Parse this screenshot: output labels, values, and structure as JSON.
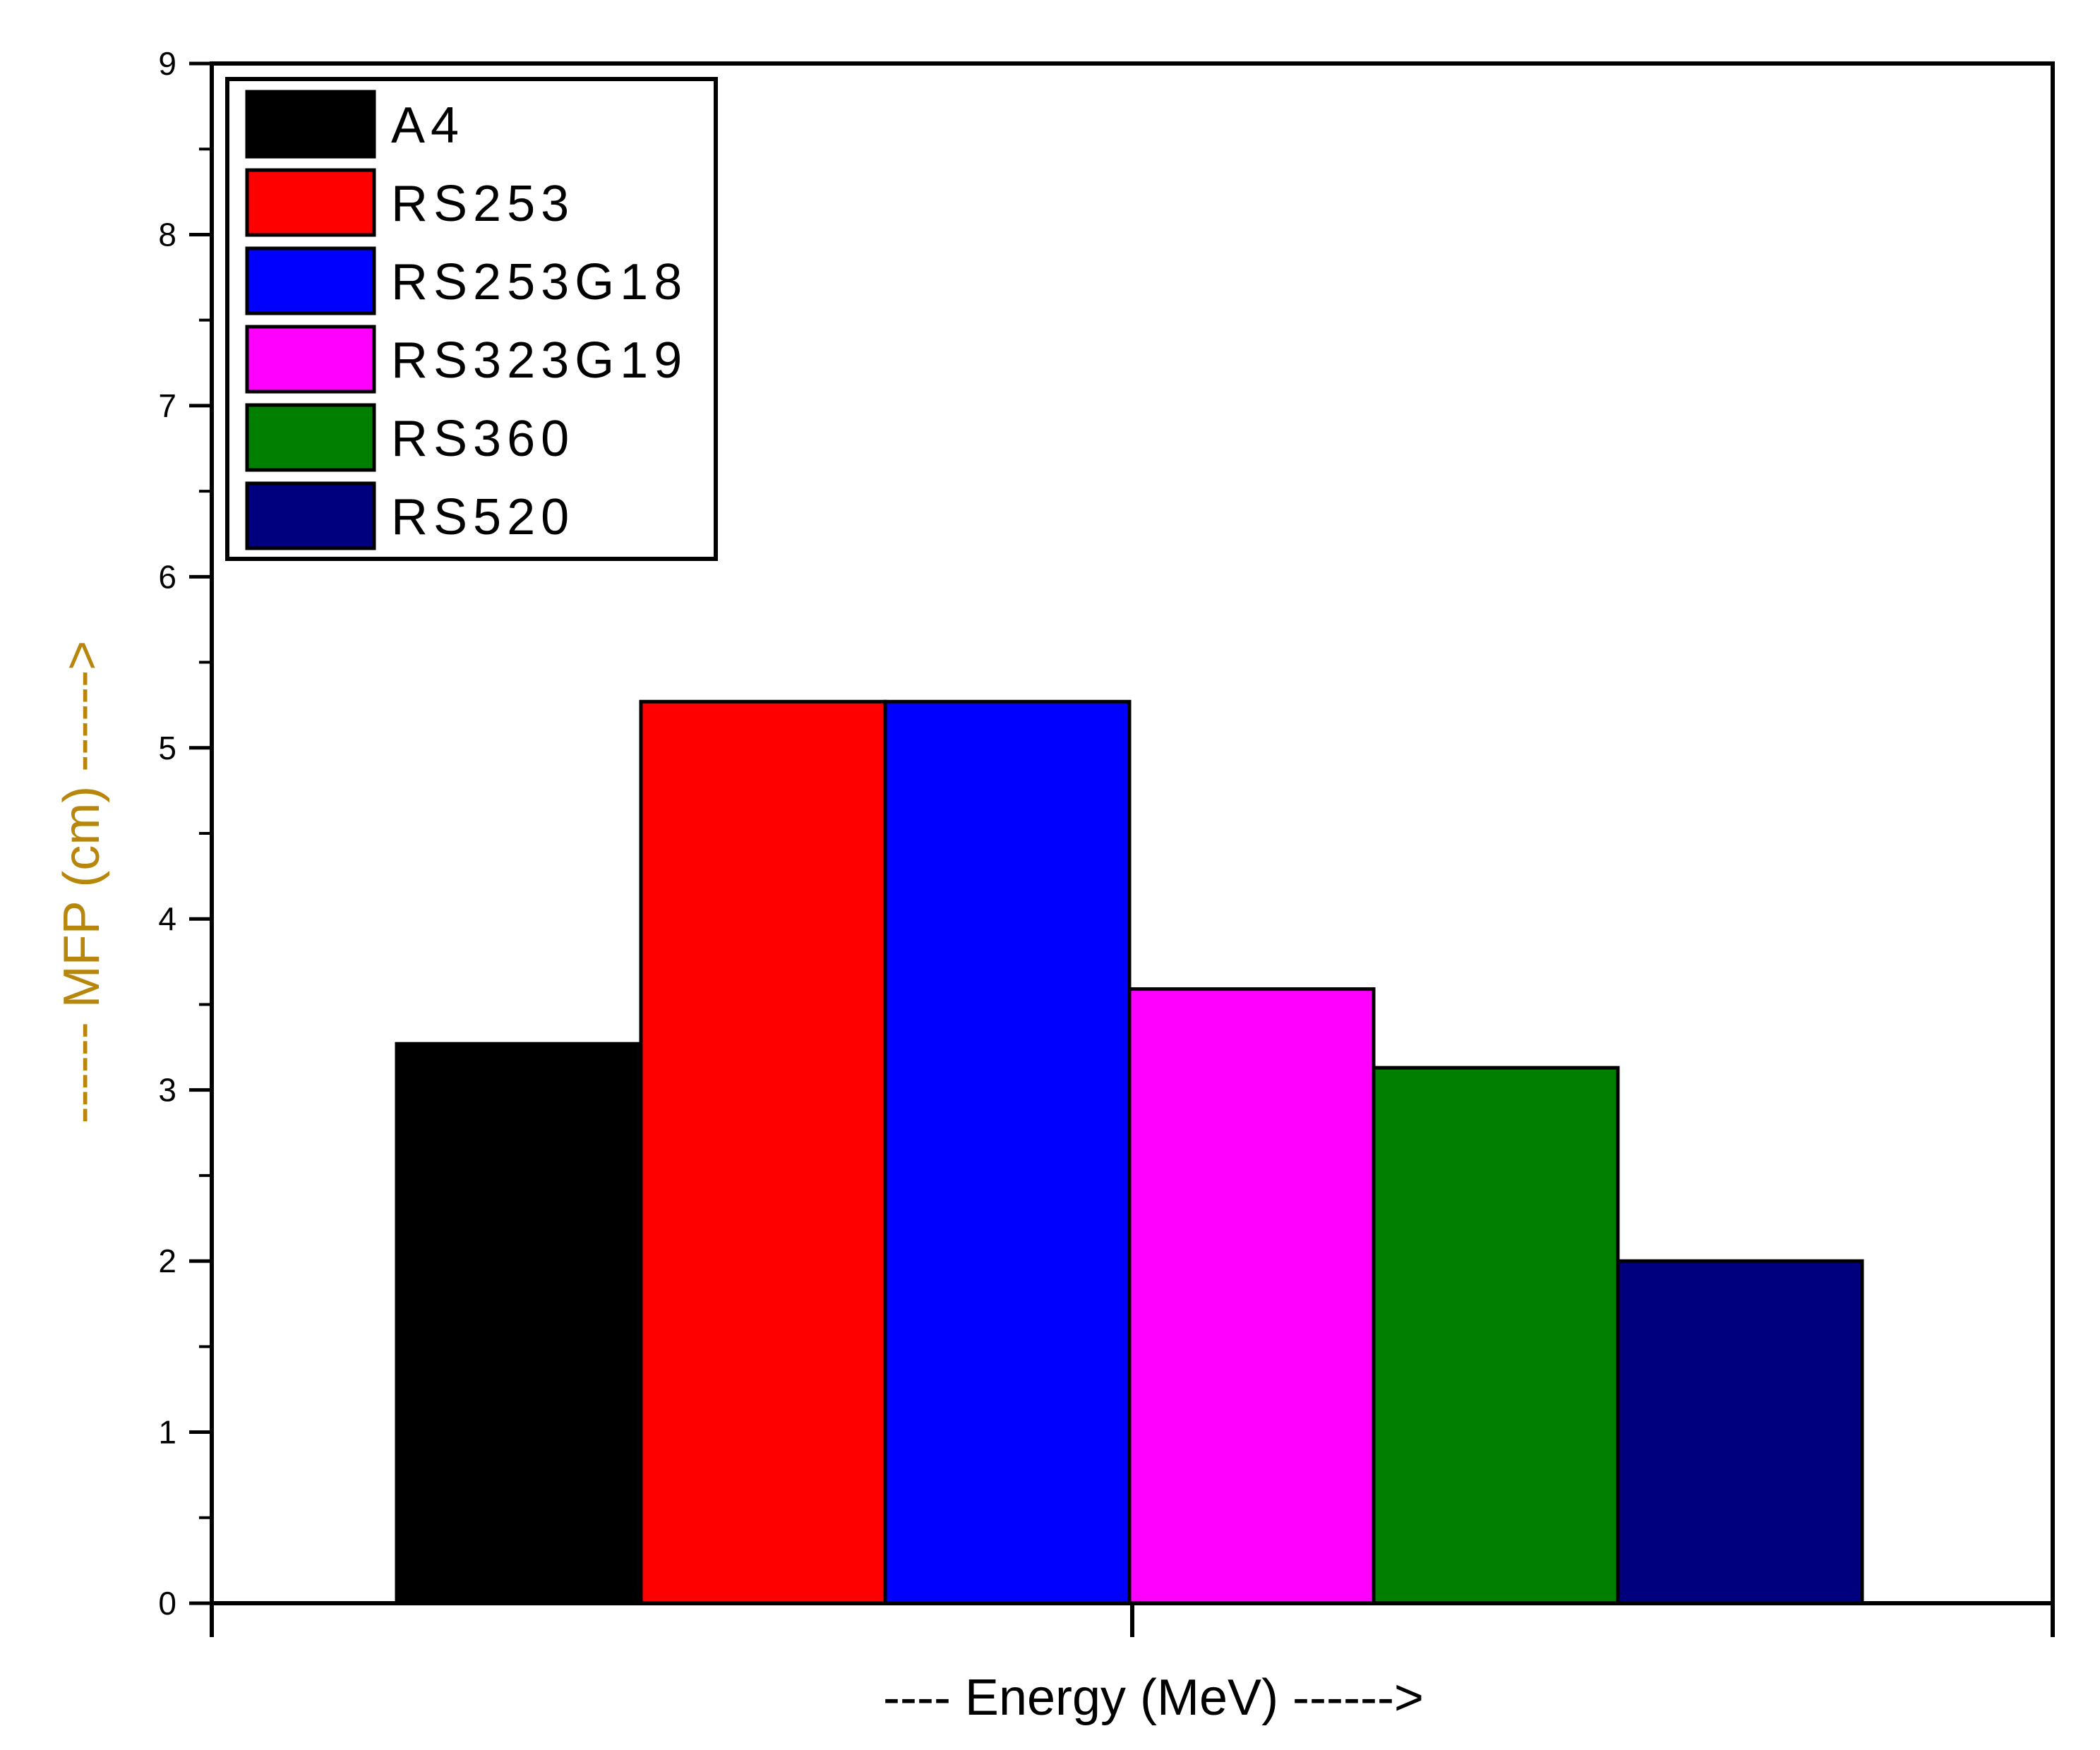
{
  "chart_data": {
    "type": "bar",
    "title": "",
    "xlabel": "----  Energy (MeV) ------>",
    "ylabel": "------ MFP (cm) ------>",
    "ylim": [
      0,
      9
    ],
    "yticks": [
      0,
      1,
      2,
      3,
      4,
      5,
      6,
      7,
      8,
      9
    ],
    "grid": false,
    "legend": "top-left",
    "series": [
      {
        "name": "A4",
        "value": 3.27,
        "color": "#000000"
      },
      {
        "name": "RS253",
        "value": 5.27,
        "color": "#ff0000"
      },
      {
        "name": "RS253G18",
        "value": 5.27,
        "color": "#0000ff"
      },
      {
        "name": "RS323G19",
        "value": 3.59,
        "color": "#ff00ff"
      },
      {
        "name": "RS360",
        "value": 3.13,
        "color": "#007f00"
      },
      {
        "name": "RS520",
        "value": 2.0,
        "color": "#00007f"
      }
    ],
    "colors": {
      "xlabel": "#000000",
      "ylabel": "#b8860b"
    }
  }
}
